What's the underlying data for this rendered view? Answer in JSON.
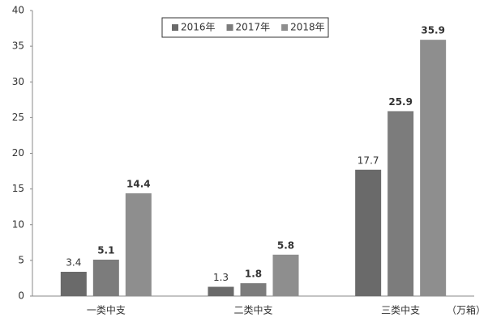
{
  "chart_data": {
    "type": "bar",
    "categories": [
      "一类中支",
      "二类中支",
      "三类中支"
    ],
    "x_unit": "（万箱）",
    "series": [
      {
        "name": "2016年",
        "color": "#6a6a6a",
        "values": [
          3.4,
          1.3,
          17.7
        ]
      },
      {
        "name": "2017年",
        "color": "#7c7c7c",
        "values": [
          5.1,
          1.8,
          25.9
        ]
      },
      {
        "name": "2018年",
        "color": "#8e8e8e",
        "values": [
          14.4,
          5.8,
          35.9
        ]
      }
    ],
    "ylim": [
      0,
      40
    ],
    "yticks": [
      0,
      5,
      10,
      15,
      20,
      25,
      30,
      35,
      40
    ],
    "legend": "top",
    "grid": false
  }
}
